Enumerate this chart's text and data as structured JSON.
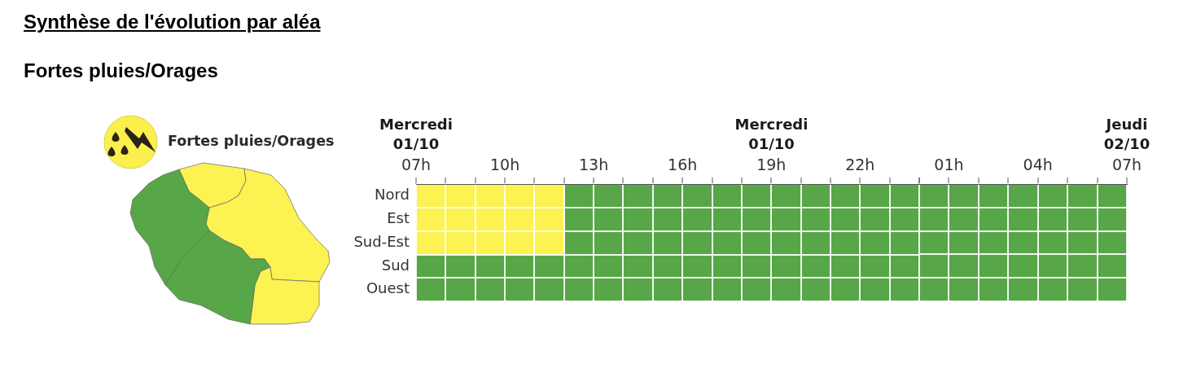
{
  "chart_data": [
    {
      "type": "other",
      "title": "Synthèse de l'évolution par aléa",
      "subtitle": "Fortes pluies/Orages",
      "annotations": [
        "Fortes pluies/Orages"
      ]
    },
    {
      "type": "bar",
      "annotations": [
        "Mercredi 01/10",
        "Mercredi 01/10"
      ],
      "orientation": "horizontal",
      "categories": [
        "Nord",
        "Est",
        "Sud-Est",
        "Sud",
        "Ouest"
      ],
      "series": [
        {
          "color": "#fcf251",
          "base": [
            7,
            7,
            7,
            null,
            null
          ],
          "values": [
            5,
            5,
            5,
            null,
            null
          ]
        },
        {
          "color": "#57a647",
          "base": [
            12,
            12,
            12,
            7,
            7
          ],
          "values": [
            12,
            12,
            12,
            17,
            17
          ]
        }
      ],
      "xlim": [
        7,
        24
      ],
      "xticks": [
        {
          "value": 7,
          "label": "07h"
        },
        {
          "value": 8,
          "label": null
        },
        {
          "value": 9,
          "label": null
        },
        {
          "value": 10,
          "label": "10h"
        },
        {
          "value": 11,
          "label": null
        },
        {
          "value": 12,
          "label": null
        },
        {
          "value": 13,
          "label": "13h"
        },
        {
          "value": 14,
          "label": null
        },
        {
          "value": 15,
          "label": null
        },
        {
          "value": 16,
          "label": "16h"
        },
        {
          "value": 17,
          "label": null
        },
        {
          "value": 18,
          "label": null
        },
        {
          "value": 19,
          "label": "19h"
        },
        {
          "value": 20,
          "label": null
        },
        {
          "value": 21,
          "label": null
        },
        {
          "value": 22,
          "label": "22h"
        },
        {
          "value": 23,
          "label": null
        },
        {
          "value": 24,
          "label": null
        }
      ],
      "grid": true
    },
    {
      "type": "bar",
      "annotations": [
        "Jeudi 02/10"
      ],
      "orientation": "horizontal",
      "categories": [
        null,
        null,
        null,
        null,
        null
      ],
      "bands": [
        {
          "axis": "x",
          "from": 0,
          "to": 7,
          "color": "#57a647"
        }
      ],
      "xlim": [
        0,
        7
      ],
      "xticks": [
        {
          "value": 0,
          "label": null
        },
        {
          "value": 1,
          "label": "01h"
        },
        {
          "value": 2,
          "label": null
        },
        {
          "value": 3,
          "label": null
        },
        {
          "value": 4,
          "label": "04h"
        },
        {
          "value": 5,
          "label": null
        },
        {
          "value": 6,
          "label": null
        },
        {
          "value": 7,
          "label": "07h"
        }
      ],
      "grid": true,
      "tick_labels": "x"
    }
  ]
}
